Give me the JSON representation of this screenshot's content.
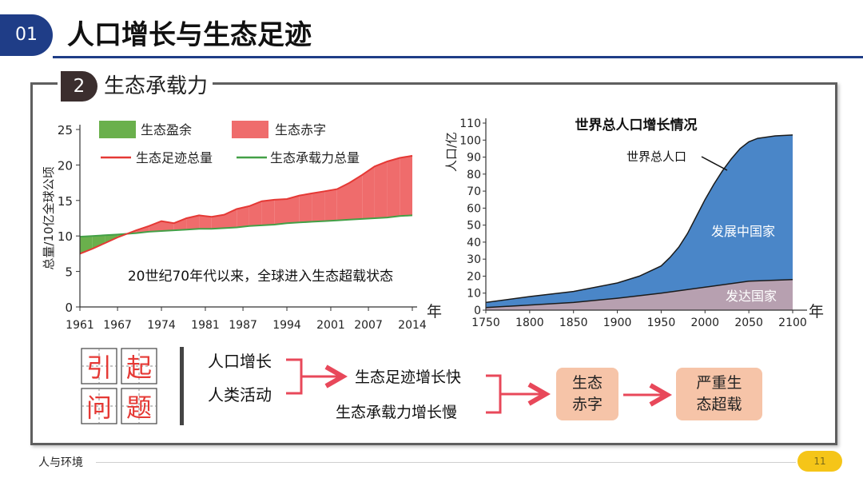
{
  "section_number": "01",
  "page_title": "人口增长与生态足迹",
  "subsection": {
    "number": "2",
    "title": "生态承载力"
  },
  "chart_data": [
    {
      "type": "area",
      "title": "",
      "xlabel": "年",
      "ylabel": "总量/10亿全球公顷",
      "x_ticks": [
        "1961",
        "1967",
        "1974",
        "1981",
        "1987",
        "1994",
        "2001",
        "2007",
        "2014"
      ],
      "y_ticks": [
        "0",
        "5",
        "10",
        "15",
        "20",
        "25"
      ],
      "xlim": [
        1961,
        2014
      ],
      "ylim": [
        0,
        25
      ],
      "legend": [
        {
          "name": "生态盈余",
          "color": "#6ab04c",
          "kind": "area"
        },
        {
          "name": "生态赤字",
          "color": "#ef6c6c",
          "kind": "area"
        },
        {
          "name": "生态足迹总量",
          "color": "#e53935",
          "kind": "line"
        },
        {
          "name": "生态承载力总量",
          "color": "#43a047",
          "kind": "line"
        }
      ],
      "annotation": "20世纪70年代以来，全球进入生态超载状态",
      "x": [
        1961,
        1963,
        1965,
        1967,
        1970,
        1972,
        1974,
        1976,
        1978,
        1980,
        1982,
        1984,
        1986,
        1988,
        1990,
        1992,
        1994,
        1996,
        1998,
        2000,
        2002,
        2004,
        2006,
        2008,
        2010,
        2012,
        2014
      ],
      "series": [
        {
          "name": "生态足迹总量",
          "values": [
            7.5,
            8.2,
            9.0,
            9.8,
            10.8,
            11.4,
            12.1,
            11.8,
            12.5,
            12.9,
            12.7,
            13.0,
            13.8,
            14.2,
            14.9,
            15.1,
            15.2,
            15.7,
            16.0,
            16.3,
            16.6,
            17.5,
            18.6,
            19.8,
            20.5,
            21.0,
            21.3
          ]
        },
        {
          "name": "生态承载力总量",
          "values": [
            9.9,
            10.0,
            10.1,
            10.2,
            10.4,
            10.6,
            10.7,
            10.8,
            10.9,
            11.0,
            11.0,
            11.1,
            11.2,
            11.4,
            11.5,
            11.6,
            11.8,
            11.9,
            12.0,
            12.1,
            12.2,
            12.3,
            12.4,
            12.5,
            12.6,
            12.8,
            12.9
          ]
        }
      ]
    },
    {
      "type": "area",
      "title": "世界总人口增长情况",
      "xlabel": "年",
      "ylabel": "人口/亿",
      "x_ticks": [
        "1750",
        "1800",
        "1850",
        "1900",
        "1950",
        "2000",
        "2050",
        "2100"
      ],
      "y_ticks": [
        "0",
        "10",
        "20",
        "30",
        "40",
        "50",
        "60",
        "70",
        "80",
        "90",
        "100",
        "110"
      ],
      "xlim": [
        1750,
        2100
      ],
      "ylim": [
        0,
        110
      ],
      "annotation": "世界总人口",
      "series": [
        {
          "name": "发展中国家",
          "color": "#4a86c8",
          "x": [
            1750,
            1800,
            1850,
            1900,
            1925,
            1950,
            1960,
            1970,
            1980,
            1990,
            2000,
            2010,
            2020,
            2030,
            2040,
            2050,
            2060,
            2080,
            2100
          ],
          "values": [
            4.5,
            8.0,
            11.0,
            16.0,
            20.0,
            26.0,
            31.0,
            37.0,
            45.0,
            55.0,
            65.0,
            74.0,
            82.0,
            89.0,
            95.0,
            99.0,
            101.0,
            102.5,
            103.0
          ]
        },
        {
          "name": "发达国家",
          "color": "#b7a0b0",
          "x": [
            1750,
            1800,
            1850,
            1900,
            1950,
            2000,
            2050,
            2100
          ],
          "values": [
            1.5,
            3.0,
            4.5,
            7.0,
            10.0,
            13.5,
            17.0,
            18.0
          ]
        }
      ]
    }
  ],
  "flow": {
    "cause_title": [
      "引",
      "起",
      "问",
      "题"
    ],
    "causes": [
      "人口增长",
      "人类活动"
    ],
    "effects": [
      "生态足迹增长快",
      "生态承载力增长慢"
    ],
    "result1": [
      "生态",
      "赤字"
    ],
    "result2": [
      "严重生",
      "态超载"
    ]
  },
  "footer": {
    "note": "人与环境",
    "page": "11"
  },
  "colors": {
    "brand": "#1f3d87",
    "arrow": "#e8485a",
    "result_box": "#f6c4a8"
  }
}
